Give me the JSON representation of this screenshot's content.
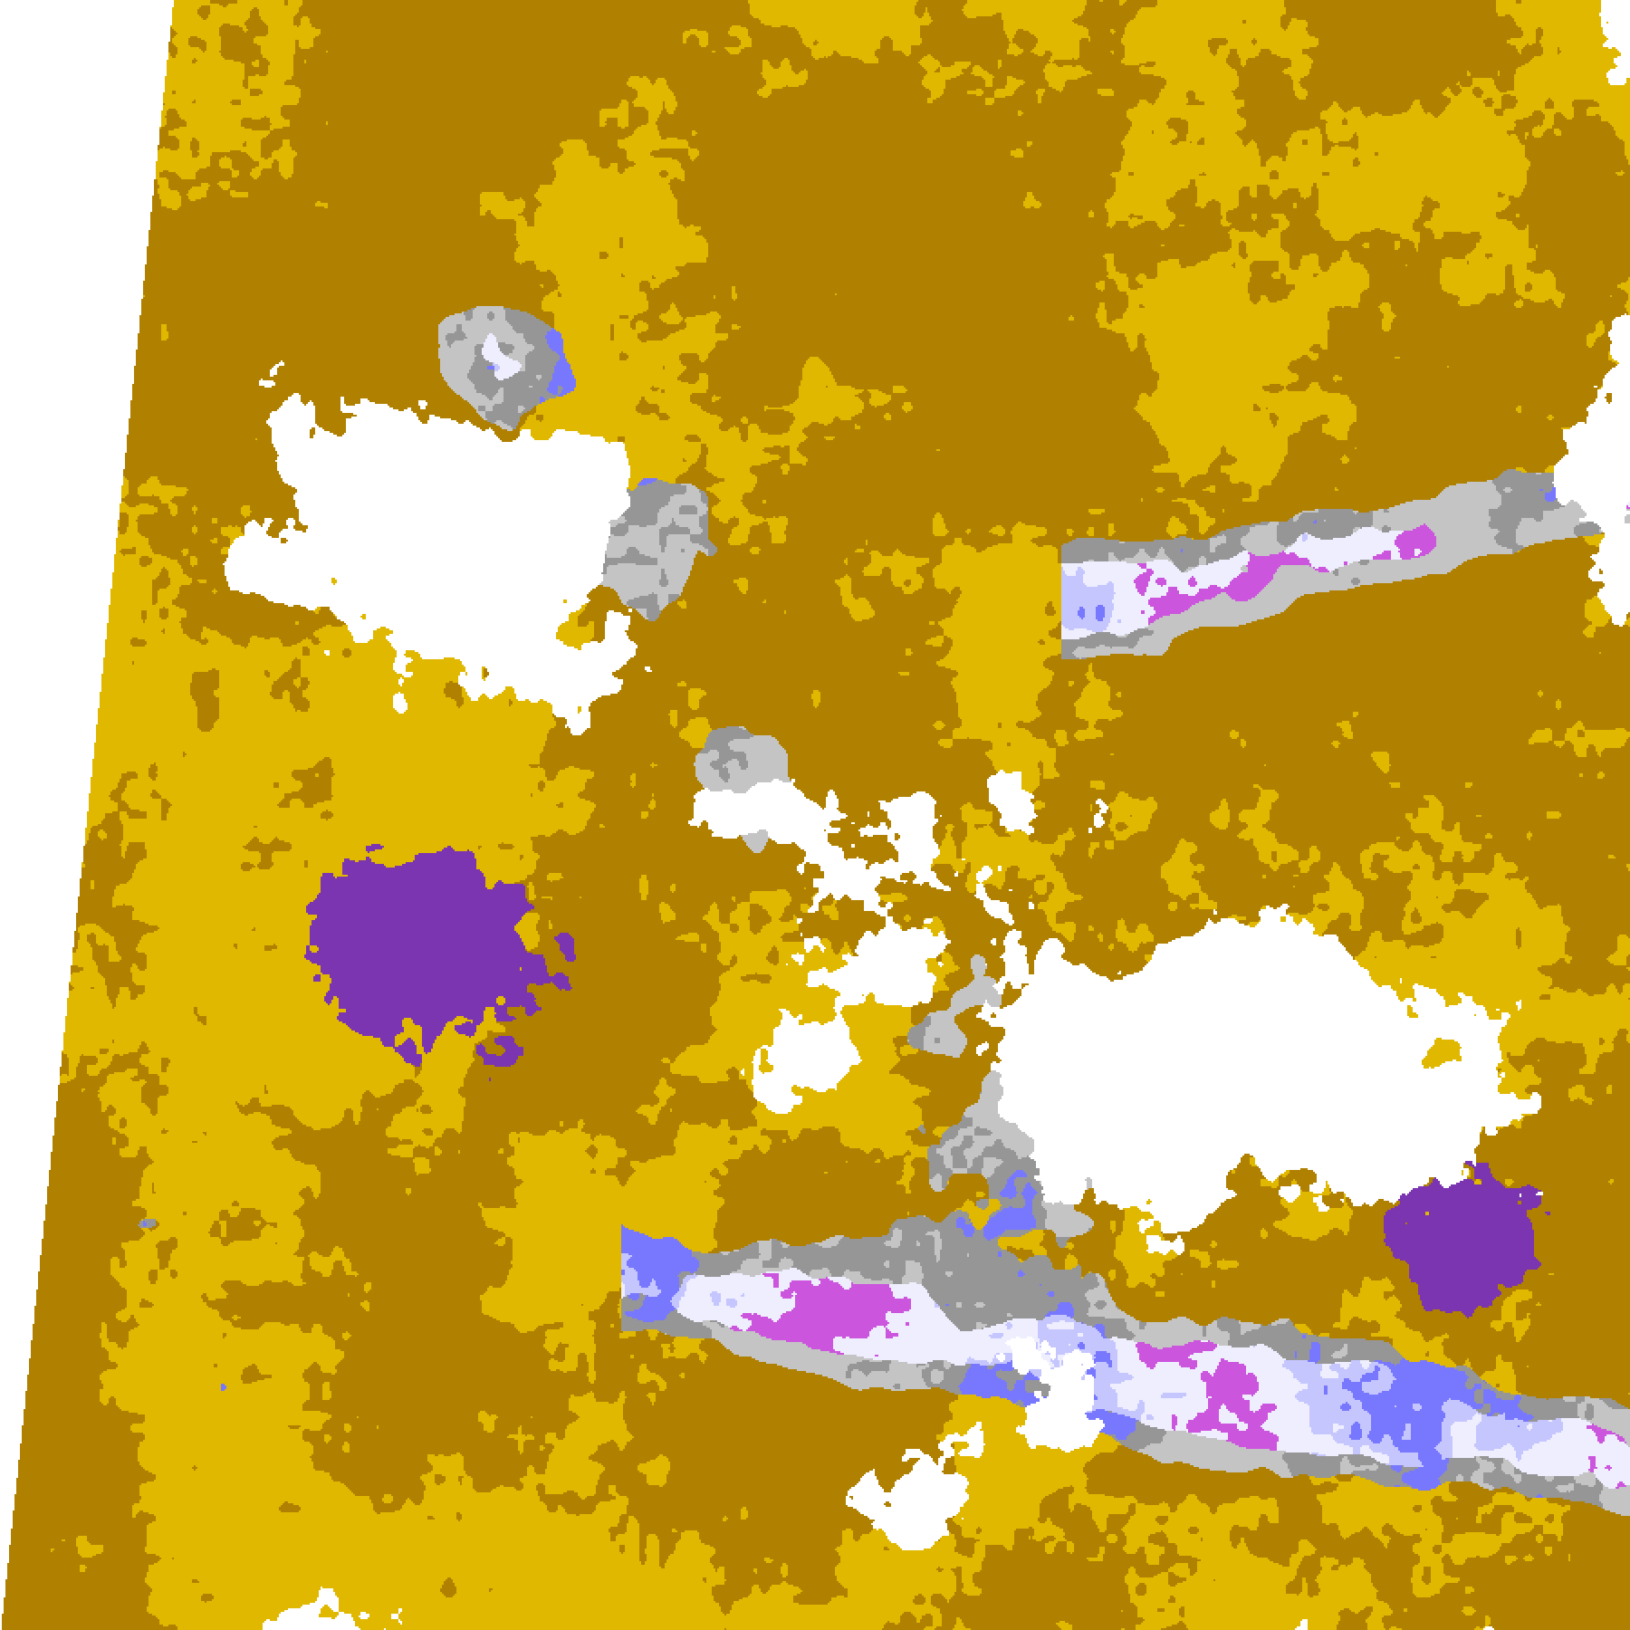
{
  "image": {
    "kind": "satellite cloud classification swath",
    "palette": {
      "clear": "#ffffff",
      "low_dark": "#b08000",
      "low_bright": "#e0b800",
      "mid_purple": "#7b35b0",
      "gray_dark": "#969696",
      "gray_light": "#c4c4c4",
      "high_blue": "#7878ff",
      "high_lavender": "#c6c6ff",
      "high_pale": "#eeeeff",
      "high_magenta": "#cc55dd",
      "outside_swath": "#ffffff"
    }
  }
}
